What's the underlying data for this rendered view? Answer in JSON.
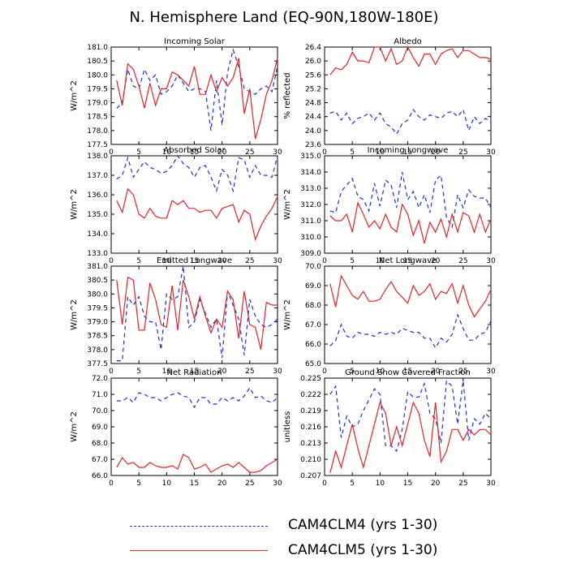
{
  "title": "N. Hemisphere Land (EQ-90N,180W-180E)",
  "legend": [
    {
      "label": "CAM4CLM4 (yrs 1-30)",
      "color": "#1f2fd0",
      "style": "dashed"
    },
    {
      "label": "CAM4CLM5 (yrs 1-30)",
      "color": "#e8202a",
      "style": "solid"
    }
  ],
  "chart_data": [
    {
      "type": "line",
      "title": "Incoming Solar",
      "ylabel": "W/m^2",
      "xlim": [
        0,
        30
      ],
      "ylim": [
        177.5,
        181.0
      ],
      "xticks": [
        0,
        5,
        10,
        15,
        20,
        25,
        30
      ],
      "yticks": [
        177.5,
        178.0,
        178.5,
        179.0,
        179.5,
        180.0,
        180.5,
        181.0
      ],
      "ytick_labels": [
        "177.5",
        "178.0",
        "178.5",
        "179.0",
        "179.5",
        "180.0",
        "180.5",
        "181.0"
      ],
      "x": [
        1,
        2,
        3,
        4,
        5,
        6,
        7,
        8,
        9,
        10,
        11,
        12,
        13,
        14,
        15,
        16,
        17,
        18,
        19,
        20,
        21,
        22,
        23,
        24,
        25,
        26,
        27,
        28,
        29,
        30
      ],
      "series": [
        {
          "name": "CAM4CLM4 (yrs 1-30)",
          "values": [
            178.8,
            179.0,
            180.2,
            179.6,
            179.5,
            180.2,
            179.8,
            180.0,
            179.3,
            179.4,
            179.6,
            180.0,
            179.7,
            179.4,
            179.5,
            179.5,
            179.4,
            178.0,
            179.8,
            178.2,
            180.1,
            180.9,
            180.3,
            179.5,
            179.4,
            179.3,
            179.5,
            179.6,
            179.4,
            180.3
          ]
        },
        {
          "name": "CAM4CLM5 (yrs 1-30)",
          "values": [
            179.8,
            178.9,
            180.4,
            180.2,
            179.6,
            178.8,
            179.7,
            178.9,
            179.5,
            179.5,
            180.1,
            180.0,
            179.8,
            179.6,
            180.3,
            179.3,
            179.3,
            180.0,
            179.4,
            179.9,
            179.6,
            179.9,
            180.6,
            178.6,
            179.5,
            177.7,
            178.4,
            179.3,
            179.8,
            180.6
          ]
        }
      ]
    },
    {
      "type": "line",
      "title": "Albedo",
      "ylabel": "% reflected",
      "xlim": [
        0,
        30
      ],
      "ylim": [
        23.6,
        26.4
      ],
      "xticks": [
        0,
        5,
        10,
        15,
        20,
        25,
        30
      ],
      "yticks": [
        23.6,
        24.0,
        24.4,
        24.8,
        25.2,
        25.6,
        26.0,
        26.4
      ],
      "ytick_labels": [
        "23.6",
        "24.0",
        "24.4",
        "24.8",
        "25.2",
        "25.6",
        "26.0",
        "26.4"
      ],
      "x": [
        1,
        2,
        3,
        4,
        5,
        6,
        7,
        8,
        9,
        10,
        11,
        12,
        13,
        14,
        15,
        16,
        17,
        18,
        19,
        20,
        21,
        22,
        23,
        24,
        25,
        26,
        27,
        28,
        29,
        30
      ],
      "series": [
        {
          "name": "CAM4CLM4 (yrs 1-30)",
          "values": [
            24.5,
            24.55,
            24.3,
            24.5,
            24.2,
            24.35,
            24.4,
            24.5,
            24.3,
            24.5,
            24.2,
            24.1,
            23.9,
            24.2,
            24.3,
            24.6,
            24.4,
            24.3,
            24.45,
            24.4,
            24.35,
            24.5,
            24.55,
            24.4,
            24.6,
            24.0,
            24.4,
            24.2,
            24.35,
            24.25
          ]
        },
        {
          "name": "CAM4CLM5 (yrs 1-30)",
          "values": [
            25.6,
            25.8,
            25.75,
            25.9,
            26.25,
            26.0,
            26.0,
            25.95,
            26.4,
            26.4,
            26.0,
            26.35,
            25.9,
            26.0,
            26.4,
            26.1,
            25.85,
            26.2,
            26.2,
            25.9,
            26.2,
            26.3,
            26.35,
            26.1,
            26.3,
            26.3,
            26.2,
            26.1,
            26.1,
            26.05
          ]
        }
      ]
    },
    {
      "type": "line",
      "title": "Absorbed Solar",
      "ylabel": "W/m^2",
      "xlim": [
        0,
        30
      ],
      "ylim": [
        133.0,
        138.0
      ],
      "xticks": [
        0,
        5,
        10,
        15,
        20,
        25,
        30
      ],
      "yticks": [
        133.0,
        134.0,
        135.0,
        136.0,
        137.0,
        138.0
      ],
      "ytick_labels": [
        "133.0",
        "134.0",
        "135.0",
        "136.0",
        "137.0",
        "138.0"
      ],
      "x": [
        1,
        2,
        3,
        4,
        5,
        6,
        7,
        8,
        9,
        10,
        11,
        12,
        13,
        14,
        15,
        16,
        17,
        18,
        19,
        20,
        21,
        22,
        23,
        24,
        25,
        26,
        27,
        28,
        29,
        30
      ],
      "series": [
        {
          "name": "CAM4CLM4 (yrs 1-30)",
          "values": [
            136.8,
            137.0,
            137.9,
            136.9,
            137.3,
            137.7,
            137.4,
            137.3,
            137.1,
            137.2,
            137.5,
            138.0,
            137.6,
            137.4,
            136.9,
            137.4,
            137.5,
            136.9,
            136.2,
            137.3,
            137.0,
            136.2,
            137.9,
            137.8,
            136.9,
            137.5,
            137.0,
            137.0,
            136.9,
            138.0
          ]
        },
        {
          "name": "CAM4CLM5 (yrs 1-30)",
          "values": [
            135.7,
            135.1,
            136.3,
            136.0,
            135.0,
            134.8,
            135.3,
            134.9,
            134.8,
            134.8,
            135.7,
            135.5,
            135.7,
            135.3,
            135.3,
            135.1,
            135.2,
            135.2,
            134.8,
            135.3,
            135.4,
            135.5,
            134.6,
            135.2,
            135.0,
            133.7,
            134.4,
            134.9,
            135.3,
            135.9
          ]
        }
      ]
    },
    {
      "type": "line",
      "title": "Incoming Longwave",
      "ylabel": "W/m^2",
      "xlim": [
        0,
        30
      ],
      "ylim": [
        309.0,
        315.0
      ],
      "xticks": [
        0,
        5,
        10,
        15,
        20,
        25,
        30
      ],
      "yticks": [
        309.0,
        310.0,
        311.0,
        312.0,
        313.0,
        314.0,
        315.0
      ],
      "ytick_labels": [
        "309.0",
        "310.0",
        "311.0",
        "312.0",
        "313.0",
        "314.0",
        "315.0"
      ],
      "x": [
        1,
        2,
        3,
        4,
        5,
        6,
        7,
        8,
        9,
        10,
        11,
        12,
        13,
        14,
        15,
        16,
        17,
        18,
        19,
        20,
        21,
        22,
        23,
        24,
        25,
        26,
        27,
        28,
        29,
        30
      ],
      "series": [
        {
          "name": "CAM4CLM4 (yrs 1-30)",
          "values": [
            311.6,
            311.5,
            312.8,
            313.2,
            313.6,
            312.5,
            312.3,
            311.6,
            313.3,
            311.9,
            313.5,
            313.2,
            311.8,
            314.0,
            312.3,
            312.8,
            311.8,
            312.6,
            311.5,
            313.5,
            313.8,
            311.2,
            310.6,
            312.6,
            311.8,
            312.9,
            312.5,
            312.4,
            312.4,
            311.8
          ]
        },
        {
          "name": "CAM4CLM5 (yrs 1-30)",
          "values": [
            311.3,
            311.0,
            311.0,
            311.4,
            310.3,
            312.1,
            311.4,
            310.6,
            311.0,
            310.5,
            311.4,
            310.6,
            310.3,
            312.0,
            311.4,
            310.1,
            311.0,
            309.6,
            310.9,
            310.3,
            311.1,
            310.0,
            311.4,
            310.3,
            311.5,
            311.3,
            310.3,
            311.4,
            310.3,
            311.1
          ]
        }
      ]
    },
    {
      "type": "line",
      "title": "Emitted Longwave",
      "ylabel": "W/m^2",
      "xlim": [
        0,
        30
      ],
      "ylim": [
        377.5,
        381.0
      ],
      "xticks": [
        0,
        5,
        10,
        15,
        20,
        25,
        30
      ],
      "yticks": [
        377.5,
        378.0,
        378.5,
        379.0,
        379.5,
        380.0,
        380.5,
        381.0
      ],
      "ytick_labels": [
        "377.5",
        "378.0",
        "378.5",
        "379.0",
        "379.5",
        "380.0",
        "380.5",
        "381.0"
      ],
      "x": [
        1,
        2,
        3,
        4,
        5,
        6,
        7,
        8,
        9,
        10,
        11,
        12,
        13,
        14,
        15,
        16,
        17,
        18,
        19,
        20,
        21,
        22,
        23,
        24,
        25,
        26,
        27,
        28,
        29,
        30
      ],
      "series": [
        {
          "name": "CAM4CLM4 (yrs 1-30)",
          "values": [
            377.6,
            377.6,
            379.9,
            379.6,
            379.9,
            379.2,
            379.0,
            379.0,
            378.0,
            380.0,
            379.8,
            379.9,
            381.0,
            378.8,
            379.0,
            379.8,
            379.3,
            378.8,
            379.1,
            377.7,
            380.1,
            379.6,
            379.1,
            377.8,
            379.8,
            379.2,
            378.9,
            378.8,
            378.9,
            379.1
          ]
        },
        {
          "name": "CAM4CLM5 (yrs 1-30)",
          "values": [
            380.5,
            378.9,
            380.6,
            380.5,
            378.7,
            378.7,
            380.4,
            379.8,
            378.9,
            378.8,
            380.3,
            378.7,
            380.5,
            379.9,
            379.1,
            379.9,
            379.2,
            378.6,
            379.1,
            378.8,
            380.1,
            379.8,
            378.4,
            380.1,
            378.9,
            378.8,
            378.0,
            379.7,
            379.6,
            379.6
          ]
        }
      ]
    },
    {
      "type": "line",
      "title": "Net Longwave",
      "ylabel": "W/m^2",
      "xlim": [
        0,
        30
      ],
      "ylim": [
        65.0,
        70.0
      ],
      "xticks": [
        0,
        5,
        10,
        15,
        20,
        25,
        30
      ],
      "yticks": [
        65.0,
        66.0,
        67.0,
        68.0,
        69.0,
        70.0
      ],
      "ytick_labels": [
        "65.0",
        "66.0",
        "67.0",
        "68.0",
        "69.0",
        "70.0"
      ],
      "x": [
        1,
        2,
        3,
        4,
        5,
        6,
        7,
        8,
        9,
        10,
        11,
        12,
        13,
        14,
        15,
        16,
        17,
        18,
        19,
        20,
        21,
        22,
        23,
        24,
        25,
        26,
        27,
        28,
        29,
        30
      ],
      "series": [
        {
          "name": "CAM4CLM4 (yrs 1-30)",
          "values": [
            65.9,
            66.2,
            67.0,
            66.4,
            66.3,
            66.6,
            66.5,
            66.5,
            66.4,
            66.6,
            66.5,
            66.6,
            66.5,
            66.8,
            66.7,
            66.6,
            66.6,
            66.3,
            66.3,
            65.8,
            66.3,
            66.1,
            66.5,
            67.5,
            66.8,
            66.2,
            66.2,
            66.5,
            66.6,
            67.2
          ]
        },
        {
          "name": "CAM4CLM5 (yrs 1-30)",
          "values": [
            69.1,
            67.9,
            69.5,
            69.0,
            68.5,
            68.3,
            68.7,
            68.2,
            68.2,
            68.3,
            68.8,
            69.2,
            68.7,
            68.4,
            68.1,
            69.0,
            68.5,
            68.7,
            69.1,
            68.3,
            68.7,
            68.6,
            69.1,
            68.1,
            69.0,
            68.0,
            67.4,
            67.8,
            68.2,
            68.8
          ]
        }
      ]
    },
    {
      "type": "line",
      "title": "Net Radiation",
      "ylabel": "W/m^2",
      "xlim": [
        0,
        30
      ],
      "ylim": [
        66.0,
        72.0
      ],
      "xticks": [
        0,
        5,
        10,
        15,
        20,
        25,
        30
      ],
      "yticks": [
        66.0,
        67.0,
        68.0,
        69.0,
        70.0,
        71.0,
        72.0
      ],
      "ytick_labels": [
        "66.0",
        "67.0",
        "68.0",
        "69.0",
        "70.0",
        "71.0",
        "72.0"
      ],
      "x": [
        1,
        2,
        3,
        4,
        5,
        6,
        7,
        8,
        9,
        10,
        11,
        12,
        13,
        14,
        15,
        16,
        17,
        18,
        19,
        20,
        21,
        22,
        23,
        24,
        25,
        26,
        27,
        28,
        29,
        30
      ],
      "series": [
        {
          "name": "CAM4CLM4 (yrs 1-30)",
          "values": [
            70.6,
            70.6,
            70.8,
            70.5,
            71.1,
            71.0,
            70.8,
            70.8,
            70.6,
            70.8,
            71.0,
            71.1,
            70.9,
            70.8,
            70.2,
            70.8,
            70.8,
            70.4,
            70.4,
            70.8,
            70.6,
            70.8,
            70.6,
            70.9,
            71.4,
            70.8,
            70.9,
            70.6,
            70.5,
            70.8
          ]
        },
        {
          "name": "CAM4CLM5 (yrs 1-30)",
          "values": [
            66.5,
            67.1,
            66.7,
            66.8,
            66.5,
            66.5,
            66.8,
            66.6,
            66.5,
            66.5,
            66.6,
            66.4,
            67.3,
            67.1,
            66.4,
            66.5,
            66.7,
            66.2,
            66.4,
            66.6,
            66.7,
            66.5,
            66.8,
            66.5,
            66.2,
            66.2,
            66.3,
            66.6,
            66.8,
            67.0
          ]
        }
      ]
    },
    {
      "type": "line",
      "title": "Ground Snow Covered Fraction",
      "ylabel": "unitless",
      "xlim": [
        0,
        30
      ],
      "ylim": [
        0.207,
        0.225
      ],
      "xticks": [
        0,
        5,
        10,
        15,
        20,
        25,
        30
      ],
      "yticks": [
        0.207,
        0.21,
        0.213,
        0.216,
        0.219,
        0.222,
        0.225
      ],
      "ytick_labels": [
        "0.207",
        "0.210",
        "0.213",
        "0.216",
        "0.219",
        "0.222",
        "0.225"
      ],
      "x": [
        1,
        2,
        3,
        4,
        5,
        6,
        7,
        8,
        9,
        10,
        11,
        12,
        13,
        14,
        15,
        16,
        17,
        18,
        19,
        20,
        21,
        22,
        23,
        24,
        25,
        26,
        27,
        28,
        29,
        30
      ],
      "series": [
        {
          "name": "CAM4CLM4 (yrs 1-30)",
          "values": [
            0.222,
            0.2235,
            0.214,
            0.218,
            0.216,
            0.2165,
            0.219,
            0.221,
            0.223,
            0.222,
            0.2125,
            0.2125,
            0.2115,
            0.2155,
            0.2225,
            0.2215,
            0.2215,
            0.224,
            0.2185,
            0.2175,
            0.213,
            0.2245,
            0.2235,
            0.2165,
            0.2245,
            0.2135,
            0.2175,
            0.2165,
            0.2185,
            0.2175
          ]
        },
        {
          "name": "CAM4CLM5 (yrs 1-30)",
          "values": [
            0.2075,
            0.2115,
            0.2085,
            0.2125,
            0.2165,
            0.212,
            0.2085,
            0.2125,
            0.2165,
            0.2205,
            0.2185,
            0.2125,
            0.216,
            0.2125,
            0.2165,
            0.2205,
            0.2185,
            0.2135,
            0.2105,
            0.2205,
            0.2095,
            0.2115,
            0.2155,
            0.2155,
            0.2135,
            0.2155,
            0.2145,
            0.2155,
            0.2155,
            0.2145
          ]
        }
      ]
    }
  ]
}
